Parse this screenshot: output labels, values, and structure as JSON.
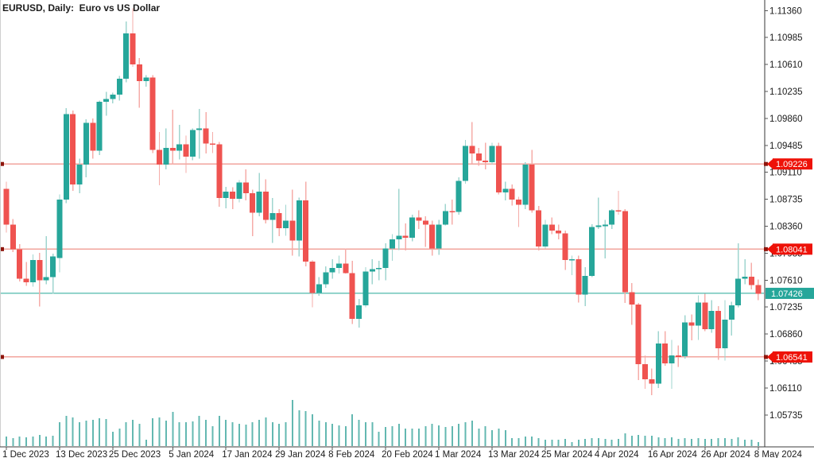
{
  "window": {
    "title": "EURUSD, Daily:  Euro vs US Dollar"
  },
  "colors": {
    "background": "#ffffff",
    "bull_body": "#26a69a",
    "bear_body": "#ef5350",
    "bull_wick": "#9fd5cf",
    "bear_wick": "#f6aca8",
    "volume_bar": "#63b8b1",
    "hline": "#f2a49d",
    "hline_marker": "#8e150c",
    "current_line": "#6cc4ba",
    "tag_red_bg": "#ee1208",
    "tag_teal_bg": "#26a69a",
    "tag_text": "#ffffff",
    "axis_line": "#9a9a9a",
    "bottom_axis_line": "#3c3c3c",
    "axis_text": "#1a1a1a"
  },
  "price_axis": {
    "top_value": 1.1136,
    "step": 0.00375,
    "labels": [
      "1.11360",
      "1.10985",
      "1.10610",
      "1.10235",
      "1.09860",
      "1.09485",
      "1.09110",
      "1.08735",
      "1.08360",
      "1.07985",
      "1.07610",
      "1.07235",
      "1.06860",
      "1.06485",
      "1.06110",
      "1.05735"
    ]
  },
  "time_axis": {
    "labels": [
      {
        "i": 0,
        "t": "1 Dec 2023"
      },
      {
        "i": 8,
        "t": "13 Dec 2023"
      },
      {
        "i": 16,
        "t": "25 Dec 2023"
      },
      {
        "i": 25,
        "t": "5 Jan 2024"
      },
      {
        "i": 33,
        "t": "17 Jan 2024"
      },
      {
        "i": 41,
        "t": "29 Jan 2024"
      },
      {
        "i": 49,
        "t": "8 Feb 2024"
      },
      {
        "i": 57,
        "t": "20 Feb 2024"
      },
      {
        "i": 65,
        "t": "1 Mar 2024"
      },
      {
        "i": 73,
        "t": "13 Mar 2024"
      },
      {
        "i": 81,
        "t": "25 Mar 2024"
      },
      {
        "i": 89,
        "t": "4 Apr 2024"
      },
      {
        "i": 97,
        "t": "16 Apr 2024"
      },
      {
        "i": 105,
        "t": "26 Apr 2024"
      },
      {
        "i": 113,
        "t": "8 May 2024"
      }
    ]
  },
  "price_lines": [
    {
      "value": 1.09226,
      "label": "1.09226",
      "kind": "hline"
    },
    {
      "value": 1.08041,
      "label": "1.08041",
      "kind": "hline"
    },
    {
      "value": 1.06541,
      "label": "1.06541",
      "kind": "hline"
    },
    {
      "value": 1.07426,
      "label": "1.07426",
      "kind": "current"
    }
  ],
  "chart_data": {
    "type": "candlestick",
    "symbol": "EURUSD",
    "period": "Daily",
    "description": "Euro vs US Dollar",
    "current_price": 1.07426,
    "visible_price_range": [
      1.053,
      1.1151
    ],
    "columns": [
      "date",
      "open",
      "high",
      "low",
      "close",
      "volume_px"
    ],
    "candles": [
      [
        "1 Dec 2023",
        1.0888,
        1.0898,
        1.0827,
        1.0838,
        12
      ],
      [
        "4 Dec 2023",
        1.0838,
        1.0846,
        1.08,
        1.0804,
        10
      ],
      [
        "5 Dec 2023",
        1.0804,
        1.0811,
        1.0759,
        1.0763,
        12
      ],
      [
        "6 Dec 2023",
        1.0763,
        1.0786,
        1.0753,
        1.0758,
        11
      ],
      [
        "7 Dec 2023",
        1.0758,
        1.0797,
        1.0752,
        1.0789,
        12
      ],
      [
        "8 Dec 2023",
        1.0789,
        1.0799,
        1.0724,
        1.0761,
        14
      ],
      [
        "11 Dec 2023",
        1.0761,
        1.0822,
        1.0755,
        1.0765,
        12
      ],
      [
        "12 Dec 2023",
        1.0765,
        1.0798,
        1.0742,
        1.0794,
        13
      ],
      [
        "13 Dec 2023",
        1.0792,
        1.088,
        1.0772,
        1.0873,
        30
      ],
      [
        "14 Dec 2023",
        1.0873,
        1.1,
        1.0868,
        1.0992,
        38
      ],
      [
        "15 Dec 2023",
        1.0992,
        1.0997,
        1.0885,
        1.0894,
        36
      ],
      [
        "18 Dec 2023",
        1.0894,
        1.093,
        1.0882,
        1.0922,
        30
      ],
      [
        "19 Dec 2023",
        1.0922,
        1.0985,
        1.0904,
        1.098,
        32
      ],
      [
        "20 Dec 2023",
        1.098,
        1.0986,
        1.093,
        1.0941,
        33
      ],
      [
        "21 Dec 2023",
        1.0941,
        1.1011,
        1.0935,
        1.1009,
        35
      ],
      [
        "22 Dec 2023",
        1.1009,
        1.1023,
        1.099,
        1.1013,
        34
      ],
      [
        "25 Dec 2023",
        1.1013,
        1.1022,
        1.1007,
        1.1019,
        18
      ],
      [
        "26 Dec 2023",
        1.1019,
        1.1045,
        1.1011,
        1.1041,
        22
      ],
      [
        "27 Dec 2023",
        1.1041,
        1.1121,
        1.1036,
        1.1104,
        30
      ],
      [
        "28 Dec 2023",
        1.1104,
        1.1139,
        1.1058,
        1.1061,
        33
      ],
      [
        "29 Dec 2023",
        1.1061,
        1.107,
        1.1001,
        1.1038,
        28
      ],
      [
        "1 Jan 2024",
        1.1038,
        1.1046,
        1.103,
        1.1043,
        8
      ],
      [
        "2 Jan 2024",
        1.1043,
        1.1046,
        1.0938,
        1.0942,
        35
      ],
      [
        "3 Jan 2024",
        1.0942,
        1.0967,
        1.0893,
        1.0922,
        36
      ],
      [
        "4 Jan 2024",
        1.0922,
        1.0972,
        1.0915,
        1.0945,
        32
      ],
      [
        "5 Jan 2024",
        1.0945,
        1.0998,
        1.0922,
        1.0941,
        43
      ],
      [
        "8 Jan 2024",
        1.0941,
        1.0977,
        1.0929,
        1.095,
        30
      ],
      [
        "9 Jan 2024",
        1.095,
        1.0962,
        1.091,
        1.0933,
        30
      ],
      [
        "10 Jan 2024",
        1.0933,
        1.0972,
        1.0928,
        1.097,
        31
      ],
      [
        "11 Jan 2024",
        1.097,
        1.0999,
        1.093,
        1.0972,
        38
      ],
      [
        "12 Jan 2024",
        1.0972,
        1.0995,
        1.0937,
        1.0951,
        33
      ],
      [
        "15 Jan 2024",
        1.0951,
        1.0967,
        1.0938,
        1.095,
        25
      ],
      [
        "16 Jan 2024",
        1.095,
        1.0953,
        1.0863,
        1.0875,
        38
      ],
      [
        "17 Jan 2024",
        1.0875,
        1.0891,
        1.0861,
        1.0884,
        33
      ],
      [
        "18 Jan 2024",
        1.0884,
        1.089,
        1.086,
        1.0874,
        30
      ],
      [
        "19 Jan 2024",
        1.0874,
        1.09,
        1.0869,
        1.0897,
        28
      ],
      [
        "22 Jan 2024",
        1.0897,
        1.0915,
        1.0872,
        1.0882,
        27
      ],
      [
        "23 Jan 2024",
        1.0882,
        1.0887,
        1.0822,
        1.0855,
        30
      ],
      [
        "24 Jan 2024",
        1.0855,
        1.091,
        1.085,
        1.0884,
        33
      ],
      [
        "25 Jan 2024",
        1.0884,
        1.0901,
        1.084,
        1.0845,
        36
      ],
      [
        "26 Jan 2024",
        1.0845,
        1.0875,
        1.0813,
        1.0854,
        30
      ],
      [
        "29 Jan 2024",
        1.0854,
        1.086,
        1.0822,
        1.0833,
        28
      ],
      [
        "30 Jan 2024",
        1.0833,
        1.0866,
        1.0823,
        1.0844,
        30
      ],
      [
        "31 Jan 2024",
        1.0844,
        1.0887,
        1.0795,
        1.0816,
        58
      ],
      [
        "1 Feb 2024",
        1.0816,
        1.0876,
        1.0794,
        1.0872,
        45
      ],
      [
        "2 Feb 2024",
        1.0872,
        1.0898,
        1.078,
        1.0787,
        44
      ],
      [
        "5 Feb 2024",
        1.0787,
        1.0789,
        1.0723,
        1.0743,
        40
      ],
      [
        "6 Feb 2024",
        1.0743,
        1.0765,
        1.0739,
        1.0755,
        32
      ],
      [
        "7 Feb 2024",
        1.0755,
        1.078,
        1.075,
        1.0772,
        30
      ],
      [
        "8 Feb 2024",
        1.0772,
        1.079,
        1.0763,
        1.0778,
        28
      ],
      [
        "9 Feb 2024",
        1.0778,
        1.0795,
        1.077,
        1.0784,
        26
      ],
      [
        "12 Feb 2024",
        1.0784,
        1.0805,
        1.077,
        1.0771,
        25
      ],
      [
        "13 Feb 2024",
        1.0771,
        1.0788,
        1.07,
        1.0707,
        40
      ],
      [
        "14 Feb 2024",
        1.0707,
        1.0735,
        1.0695,
        1.0726,
        33
      ],
      [
        "15 Feb 2024",
        1.0726,
        1.0779,
        1.0723,
        1.0773,
        30
      ],
      [
        "16 Feb 2024",
        1.0773,
        1.079,
        1.0755,
        1.0776,
        30
      ],
      [
        "19 Feb 2024",
        1.0776,
        1.0788,
        1.0761,
        1.0778,
        18
      ],
      [
        "20 Feb 2024",
        1.0778,
        1.0812,
        1.0761,
        1.0805,
        24
      ],
      [
        "21 Feb 2024",
        1.0805,
        1.0825,
        1.0788,
        1.0818,
        25
      ],
      [
        "22 Feb 2024",
        1.0818,
        1.0888,
        1.0803,
        1.0823,
        28
      ],
      [
        "23 Feb 2024",
        1.0823,
        1.084,
        1.0802,
        1.082,
        22
      ],
      [
        "26 Feb 2024",
        1.082,
        1.0852,
        1.0815,
        1.0848,
        22
      ],
      [
        "27 Feb 2024",
        1.0848,
        1.0858,
        1.0832,
        1.0844,
        22
      ],
      [
        "28 Feb 2024",
        1.0844,
        1.085,
        1.0807,
        1.0838,
        25
      ],
      [
        "29 Feb 2024",
        1.0838,
        1.0844,
        1.0795,
        1.0805,
        28
      ],
      [
        "1 Mar 2024",
        1.0805,
        1.0845,
        1.0796,
        1.0838,
        26
      ],
      [
        "4 Mar 2024",
        1.0838,
        1.0867,
        1.0837,
        1.0857,
        24
      ],
      [
        "5 Mar 2024",
        1.0857,
        1.0873,
        1.0838,
        1.0856,
        25
      ],
      [
        "6 Mar 2024",
        1.0856,
        1.0904,
        1.0852,
        1.0899,
        28
      ],
      [
        "7 Mar 2024",
        1.0899,
        1.0956,
        1.0895,
        1.0948,
        30
      ],
      [
        "8 Mar 2024",
        1.0948,
        1.0981,
        1.0923,
        1.0937,
        32
      ],
      [
        "11 Mar 2024",
        1.0937,
        1.0945,
        1.092,
        1.0927,
        22
      ],
      [
        "12 Mar 2024",
        1.0927,
        1.0952,
        1.0915,
        1.0925,
        25
      ],
      [
        "13 Mar 2024",
        1.0925,
        1.0952,
        1.0922,
        1.0948,
        20
      ],
      [
        "14 Mar 2024",
        1.0948,
        1.0952,
        1.088,
        1.0883,
        22
      ],
      [
        "15 Mar 2024",
        1.0883,
        1.0898,
        1.0872,
        1.0888,
        20
      ],
      [
        "18 Mar 2024",
        1.0888,
        1.0894,
        1.0865,
        1.0873,
        10
      ],
      [
        "19 Mar 2024",
        1.0873,
        1.0877,
        1.0835,
        1.0866,
        10
      ],
      [
        "20 Mar 2024",
        1.0866,
        1.0925,
        1.086,
        1.0922,
        12
      ],
      [
        "21 Mar 2024",
        1.0922,
        1.0942,
        1.0855,
        1.0858,
        12
      ],
      [
        "22 Mar 2024",
        1.0858,
        1.0864,
        1.0802,
        1.0808,
        10
      ],
      [
        "25 Mar 2024",
        1.0808,
        1.0845,
        1.0805,
        1.0838,
        8
      ],
      [
        "26 Mar 2024",
        1.0838,
        1.0848,
        1.0825,
        1.083,
        8
      ],
      [
        "27 Mar 2024",
        1.083,
        1.0838,
        1.0818,
        1.0826,
        8
      ],
      [
        "28 Mar 2024",
        1.0826,
        1.083,
        1.0775,
        1.0789,
        9
      ],
      [
        "29 Mar 2024",
        1.0789,
        1.0795,
        1.0768,
        1.079,
        5
      ],
      [
        "1 Apr 2024",
        1.079,
        1.0795,
        1.073,
        1.0741,
        8
      ],
      [
        "2 Apr 2024",
        1.0741,
        1.0779,
        1.0725,
        1.0767,
        9
      ],
      [
        "3 Apr 2024",
        1.0767,
        1.0839,
        1.0765,
        1.0835,
        10
      ],
      [
        "4 Apr 2024",
        1.0835,
        1.0876,
        1.0832,
        1.0837,
        10
      ],
      [
        "5 Apr 2024",
        1.0837,
        1.0845,
        1.0791,
        1.0838,
        9
      ],
      [
        "8 Apr 2024",
        1.0838,
        1.086,
        1.0832,
        1.0858,
        8
      ],
      [
        "9 Apr 2024",
        1.0858,
        1.0885,
        1.0852,
        1.0857,
        9
      ],
      [
        "10 Apr 2024",
        1.0857,
        1.086,
        1.0729,
        1.0744,
        16
      ],
      [
        "11 Apr 2024",
        1.0744,
        1.0757,
        1.0699,
        1.0727,
        13
      ],
      [
        "12 Apr 2024",
        1.0727,
        1.0729,
        1.0622,
        1.0644,
        14
      ],
      [
        "15 Apr 2024",
        1.0644,
        1.0656,
        1.061,
        1.0623,
        13
      ],
      [
        "16 Apr 2024",
        1.0623,
        1.0638,
        1.0601,
        1.0617,
        13
      ],
      [
        "17 Apr 2024",
        1.0617,
        1.069,
        1.0611,
        1.0673,
        11
      ],
      [
        "18 Apr 2024",
        1.0673,
        1.069,
        1.0642,
        1.0645,
        10
      ],
      [
        "19 Apr 2024",
        1.0645,
        1.0678,
        1.061,
        1.0656,
        11
      ],
      [
        "22 Apr 2024",
        1.0656,
        1.067,
        1.064,
        1.0655,
        9
      ],
      [
        "23 Apr 2024",
        1.0655,
        1.0712,
        1.0652,
        1.0702,
        10
      ],
      [
        "24 Apr 2024",
        1.0702,
        1.0713,
        1.0677,
        1.0698,
        9
      ],
      [
        "25 Apr 2024",
        1.0698,
        1.074,
        1.0678,
        1.073,
        10
      ],
      [
        "26 Apr 2024",
        1.073,
        1.0742,
        1.069,
        1.0693,
        9
      ],
      [
        "29 Apr 2024",
        1.0693,
        1.0733,
        1.0688,
        1.0718,
        9
      ],
      [
        "30 Apr 2024",
        1.0718,
        1.0725,
        1.065,
        1.0666,
        10
      ],
      [
        "1 May 2024",
        1.0666,
        1.0733,
        1.0649,
        1.0706,
        10
      ],
      [
        "2 May 2024",
        1.0706,
        1.0731,
        1.0684,
        1.0726,
        9
      ],
      [
        "3 May 2024",
        1.0726,
        1.0812,
        1.0723,
        1.0763,
        11
      ],
      [
        "6 May 2024",
        1.0763,
        1.079,
        1.0755,
        1.0766,
        8
      ],
      [
        "7 May 2024",
        1.0766,
        1.0785,
        1.0748,
        1.0754,
        8
      ],
      [
        "8 May 2024",
        1.0754,
        1.0762,
        1.0733,
        1.0742,
        5
      ]
    ]
  }
}
